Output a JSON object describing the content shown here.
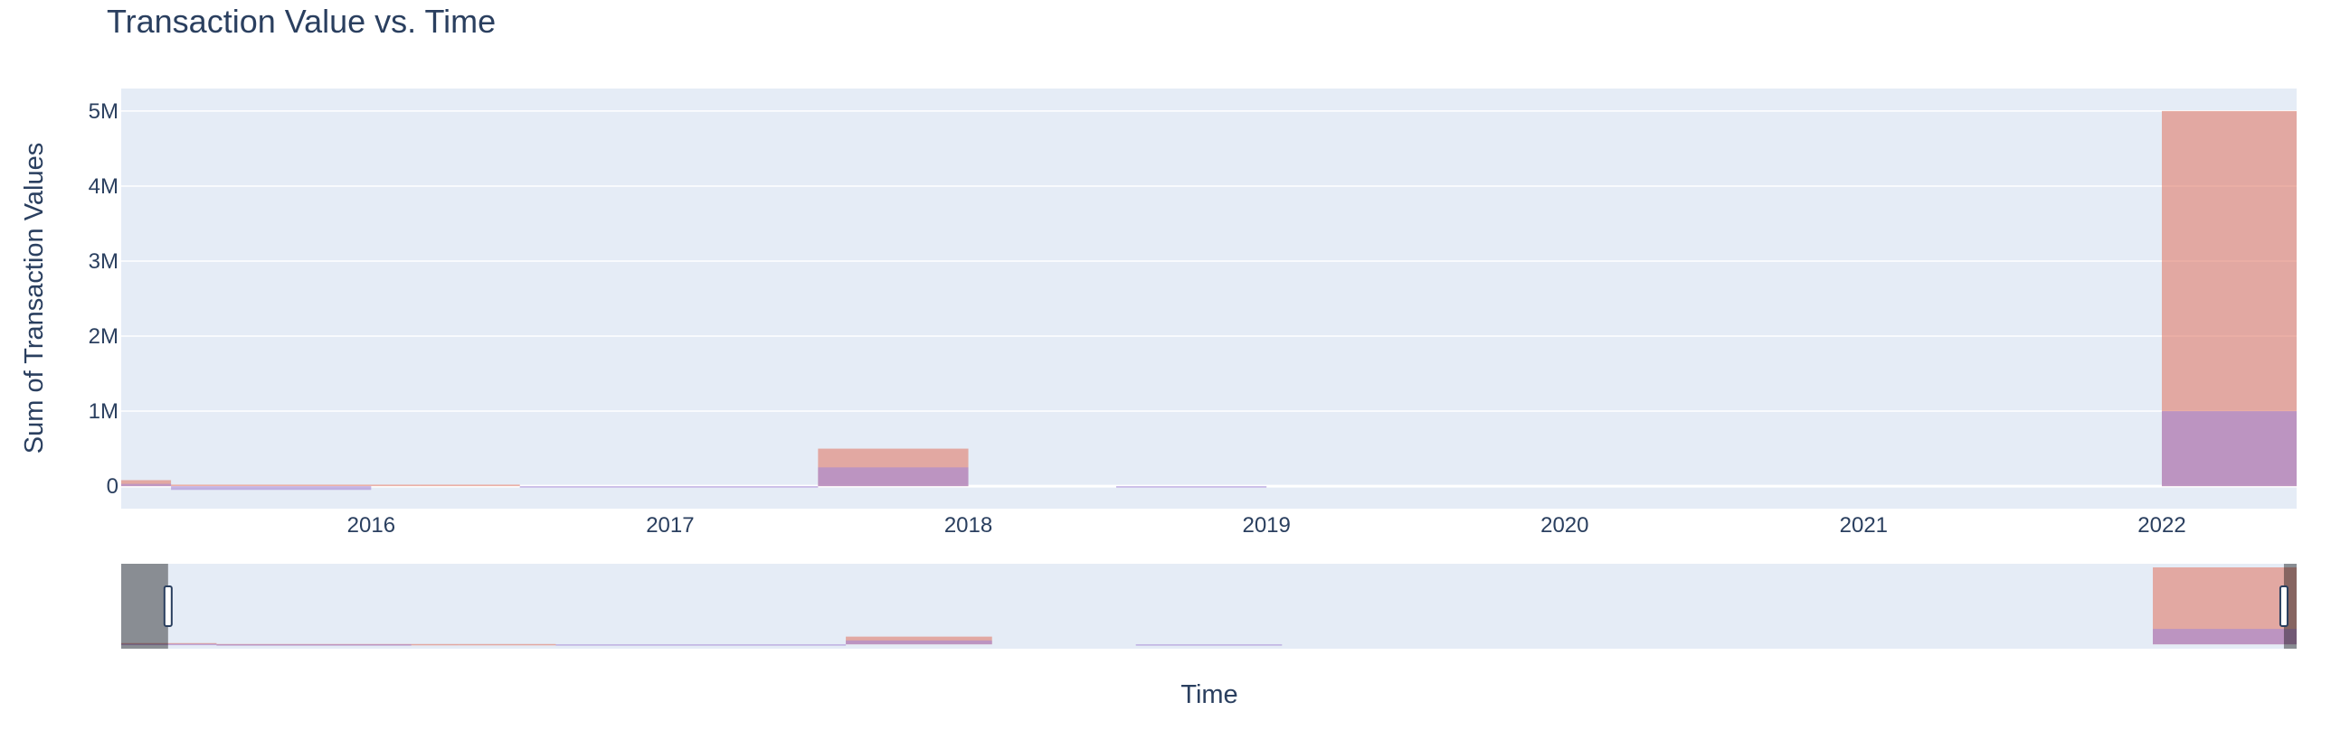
{
  "chart_data": {
    "type": "bar",
    "title": "Transaction Value vs. Time",
    "xlabel": "Time",
    "ylabel": "Sum of Transaction Values",
    "ylim": [
      -300000,
      5300000
    ],
    "xlim": [
      "2015-03-01",
      "2022-06-15"
    ],
    "yticks": [
      {
        "value": 0,
        "label": "0"
      },
      {
        "value": 1000000,
        "label": "1M"
      },
      {
        "value": 2000000,
        "label": "2M"
      },
      {
        "value": 3000000,
        "label": "3M"
      },
      {
        "value": 4000000,
        "label": "4M"
      },
      {
        "value": 5000000,
        "label": "5M"
      }
    ],
    "xticks": [
      {
        "date": "2016-01-01",
        "label": "2016"
      },
      {
        "date": "2017-01-01",
        "label": "2017"
      },
      {
        "date": "2018-01-01",
        "label": "2018"
      },
      {
        "date": "2019-01-01",
        "label": "2019"
      },
      {
        "date": "2020-01-01",
        "label": "2020"
      },
      {
        "date": "2021-01-01",
        "label": "2021"
      },
      {
        "date": "2022-01-01",
        "label": "2022"
      }
    ],
    "grid": true,
    "legend_visible": false,
    "series": [
      {
        "color": "#e07b6b",
        "opacity": 0.6,
        "bars": [
          {
            "start": "2015-01-01",
            "end": "2015-05-01",
            "value": 80000
          },
          {
            "start": "2015-05-01",
            "end": "2016-03-01",
            "value": 20000
          },
          {
            "start": "2016-03-01",
            "end": "2016-07-01",
            "value": 20000
          },
          {
            "start": "2017-07-01",
            "end": "2018-01-01",
            "value": 500000
          },
          {
            "start": "2022-01-01",
            "end": "2022-07-01",
            "value": 5000000
          }
        ]
      },
      {
        "color": "#a487d6",
        "opacity": 0.6,
        "bars": [
          {
            "start": "2015-01-01",
            "end": "2015-05-01",
            "value": 30000
          },
          {
            "start": "2015-05-01",
            "end": "2016-01-01",
            "value": -50000
          },
          {
            "start": "2016-07-01",
            "end": "2017-07-01",
            "value": -20000
          },
          {
            "start": "2017-07-01",
            "end": "2018-01-01",
            "value": 250000
          },
          {
            "start": "2018-07-01",
            "end": "2019-01-01",
            "value": -20000
          },
          {
            "start": "2022-01-01",
            "end": "2022-07-01",
            "value": 1000000
          }
        ]
      }
    ],
    "rangeslider": {
      "visible": true,
      "range": [
        "2015-01-01",
        "2022-07-01"
      ],
      "selected": [
        "2015-03-01",
        "2022-06-15"
      ]
    }
  }
}
